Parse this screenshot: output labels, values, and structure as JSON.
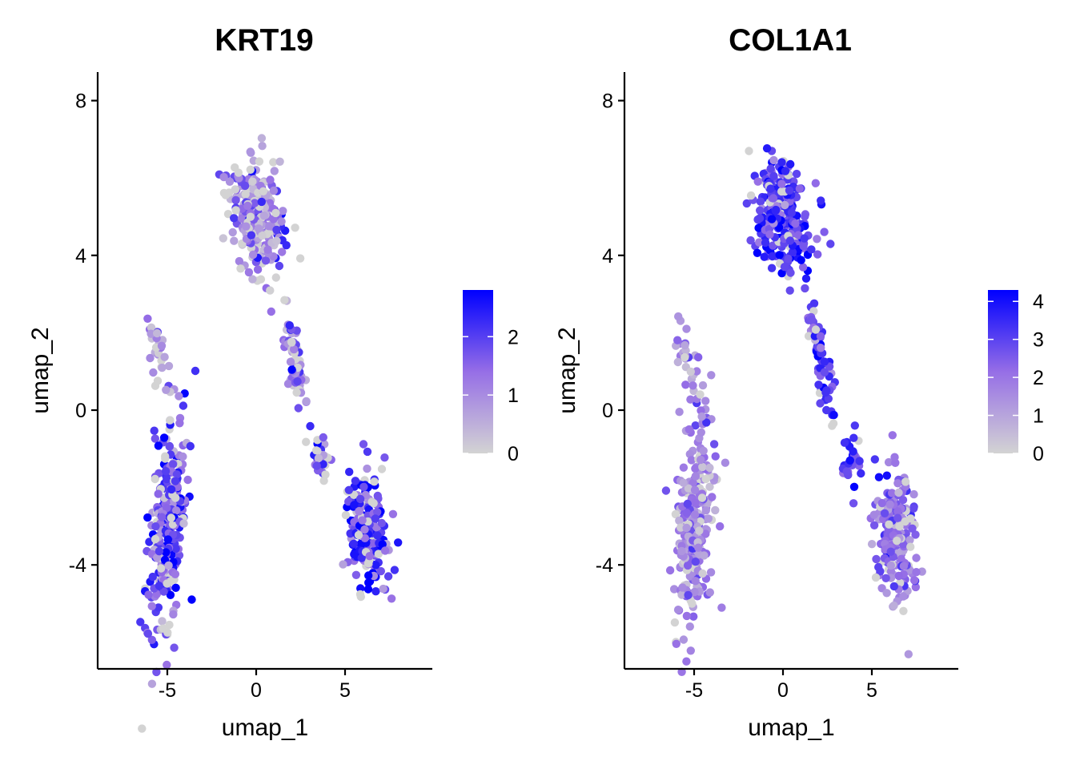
{
  "chart_data": [
    {
      "type": "scatter",
      "title": "KRT19",
      "xlabel": "umap_1",
      "ylabel": "umap_2",
      "xlim": [
        -8.6,
        9.5
      ],
      "ylim": [
        -6.7,
        8.8
      ],
      "xticks": [
        -5,
        0,
        5
      ],
      "xtick_labels": [
        "-5",
        "0",
        "5"
      ],
      "yticks": [
        -4,
        0,
        4,
        8
      ],
      "ytick_labels": [
        "-4",
        "0",
        "4",
        "8"
      ],
      "grid": false,
      "legend": {
        "type": "colorbar",
        "placement": "right",
        "min": 0,
        "max": 2.8,
        "ticks": [
          0,
          1,
          2
        ],
        "tick_labels": [
          "0",
          "1",
          "2"
        ],
        "low_color": "#d3d3d3",
        "high_color": "#0000ff"
      },
      "clusters": [
        {
          "center": [
            0.0,
            5.0
          ],
          "spread": [
            1.5,
            1.2
          ],
          "rotation": -0.6,
          "n": 260,
          "mean_expr": 1.1
        },
        {
          "center": [
            2.2,
            1.2
          ],
          "spread": [
            1.3,
            0.35
          ],
          "rotation": -1.2,
          "n": 70,
          "mean_expr": 1.1
        },
        {
          "center": [
            3.8,
            -1.3
          ],
          "spread": [
            0.5,
            0.6
          ],
          "rotation": 0.0,
          "n": 30,
          "mean_expr": 1.4
        },
        {
          "center": [
            6.3,
            -3.2
          ],
          "spread": [
            1.0,
            1.5
          ],
          "rotation": 0.2,
          "n": 230,
          "mean_expr": 2.0
        },
        {
          "center": [
            -5.0,
            -3.0
          ],
          "spread": [
            0.9,
            2.5
          ],
          "rotation": -0.15,
          "n": 280,
          "mean_expr": 1.9
        },
        {
          "center": [
            -5.5,
            1.5
          ],
          "spread": [
            0.5,
            1.1
          ],
          "rotation": 0.6,
          "n": 30,
          "mean_expr": 0.5
        }
      ]
    },
    {
      "type": "scatter",
      "title": "COL1A1",
      "xlabel": "umap_1",
      "ylabel": "umap_2",
      "xlim": [
        -8.6,
        9.5
      ],
      "ylim": [
        -6.7,
        8.8
      ],
      "xticks": [
        -5,
        0,
        5
      ],
      "xtick_labels": [
        "-5",
        "0",
        "5"
      ],
      "yticks": [
        -4,
        0,
        4,
        8
      ],
      "ytick_labels": [
        "-4",
        "0",
        "4",
        "8"
      ],
      "grid": false,
      "legend": {
        "type": "colorbar",
        "placement": "right",
        "min": 0,
        "max": 4.3,
        "ticks": [
          0,
          1,
          2,
          3,
          4
        ],
        "tick_labels": [
          "0",
          "1",
          "2",
          "3",
          "4"
        ],
        "low_color": "#d3d3d3",
        "high_color": "#0000ff"
      },
      "clusters": [
        {
          "center": [
            0.0,
            5.0
          ],
          "spread": [
            1.5,
            1.2
          ],
          "rotation": -0.6,
          "n": 260,
          "mean_expr": 3.1
        },
        {
          "center": [
            2.2,
            1.2
          ],
          "spread": [
            1.3,
            0.35
          ],
          "rotation": -1.2,
          "n": 70,
          "mean_expr": 3.0
        },
        {
          "center": [
            3.8,
            -1.3
          ],
          "spread": [
            0.5,
            0.6
          ],
          "rotation": 0.0,
          "n": 30,
          "mean_expr": 2.8
        },
        {
          "center": [
            6.3,
            -3.2
          ],
          "spread": [
            1.0,
            1.5
          ],
          "rotation": 0.2,
          "n": 230,
          "mean_expr": 2.0
        },
        {
          "center": [
            -5.0,
            -3.0
          ],
          "spread": [
            0.9,
            2.5
          ],
          "rotation": -0.15,
          "n": 280,
          "mean_expr": 1.7
        },
        {
          "center": [
            -5.5,
            1.5
          ],
          "spread": [
            0.5,
            1.1
          ],
          "rotation": 0.6,
          "n": 30,
          "mean_expr": 1.3
        }
      ]
    }
  ]
}
